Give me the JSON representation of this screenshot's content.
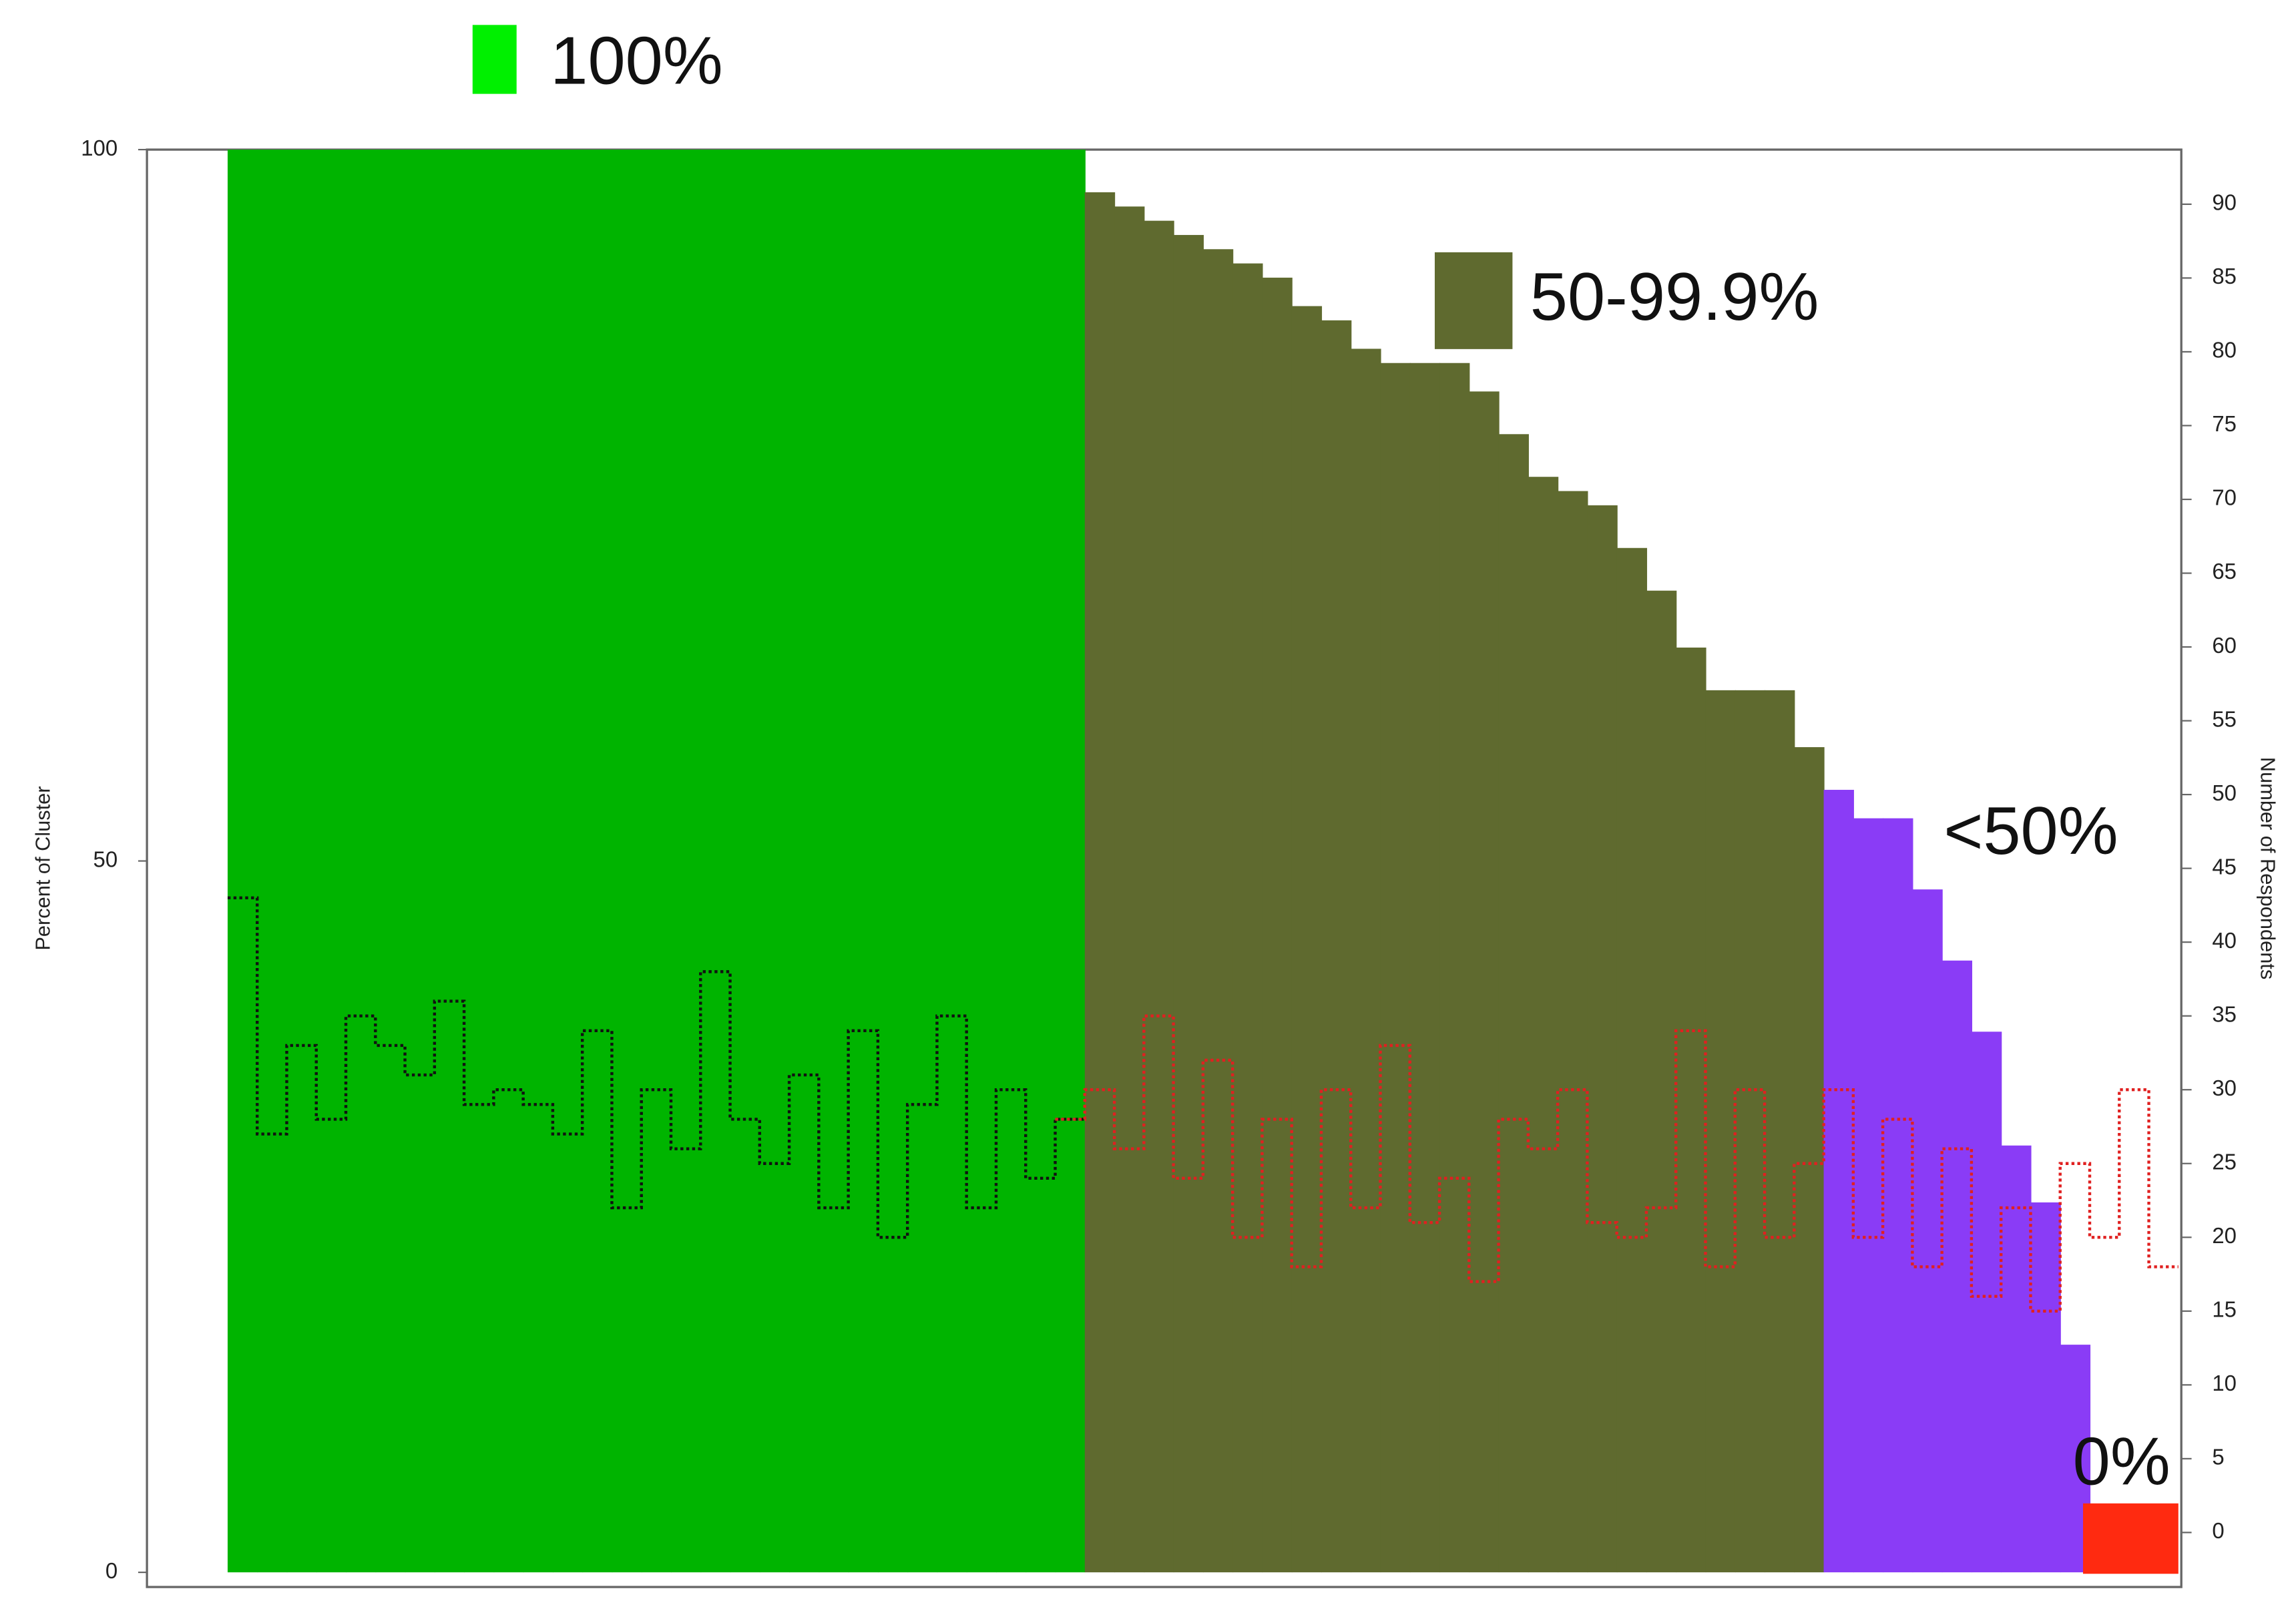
{
  "chart_data": {
    "type": "bar",
    "ylabel": "Percent of Cluster",
    "y2label": "Number of Respondents",
    "categories": [
      null,
      null,
      null,
      null,
      null,
      null,
      null,
      null,
      null,
      null,
      null,
      null,
      null,
      null,
      null,
      null,
      null,
      null,
      null,
      null,
      null,
      null,
      null,
      null,
      null,
      null,
      null,
      null,
      null,
      null,
      null,
      null,
      null,
      null,
      null,
      null,
      null,
      null,
      null,
      null,
      null,
      null,
      null,
      null,
      null,
      null,
      null,
      null,
      null,
      null,
      null,
      null,
      null,
      null,
      null,
      null,
      null,
      null,
      null,
      null,
      null,
      null,
      null,
      null,
      null,
      null
    ],
    "series": [
      {
        "name": "100%",
        "color": "#00b400",
        "values": [
          100,
          100,
          100,
          100,
          100,
          100,
          100,
          100,
          100,
          100,
          100,
          100,
          100,
          100,
          100,
          100,
          100,
          100,
          100,
          100,
          100,
          100,
          100,
          100,
          100,
          100,
          100,
          100,
          100,
          null,
          null,
          null,
          null,
          null,
          null,
          null,
          null,
          null,
          null,
          null,
          null,
          null,
          null,
          null,
          null,
          null,
          null,
          null,
          null,
          null,
          null,
          null,
          null,
          null,
          null,
          null,
          null,
          null,
          null,
          null,
          null,
          null,
          null,
          null,
          null,
          null
        ]
      },
      {
        "name": "50-99.9%",
        "color": "#5f6a2f",
        "values": [
          null,
          null,
          null,
          null,
          null,
          null,
          null,
          null,
          null,
          null,
          null,
          null,
          null,
          null,
          null,
          null,
          null,
          null,
          null,
          null,
          null,
          null,
          null,
          null,
          null,
          null,
          null,
          null,
          null,
          97,
          96,
          95,
          94,
          93,
          92,
          91,
          89,
          88,
          86,
          85,
          85,
          85,
          83,
          80,
          77,
          76,
          75,
          72,
          69,
          65,
          62,
          62,
          62,
          58,
          null,
          null,
          null,
          null,
          null,
          null,
          null,
          null,
          null,
          null,
          null,
          null
        ]
      },
      {
        "name": "<50%",
        "color": "#8a3cf6",
        "values": [
          null,
          null,
          null,
          null,
          null,
          null,
          null,
          null,
          null,
          null,
          null,
          null,
          null,
          null,
          null,
          null,
          null,
          null,
          null,
          null,
          null,
          null,
          null,
          null,
          null,
          null,
          null,
          null,
          null,
          null,
          null,
          null,
          null,
          null,
          null,
          null,
          null,
          null,
          null,
          null,
          null,
          null,
          null,
          null,
          null,
          null,
          null,
          null,
          null,
          null,
          null,
          null,
          null,
          null,
          55,
          53,
          53,
          48,
          43,
          38,
          30,
          26,
          16,
          null,
          null,
          null
        ]
      },
      {
        "name": "0%",
        "color": "#ff2a10",
        "values": [
          null,
          null,
          null,
          null,
          null,
          null,
          null,
          null,
          null,
          null,
          null,
          null,
          null,
          null,
          null,
          null,
          null,
          null,
          null,
          null,
          null,
          null,
          null,
          null,
          null,
          null,
          null,
          null,
          null,
          null,
          null,
          null,
          null,
          null,
          null,
          null,
          null,
          null,
          null,
          null,
          null,
          null,
          null,
          null,
          null,
          null,
          null,
          null,
          null,
          null,
          null,
          null,
          null,
          null,
          null,
          null,
          null,
          null,
          null,
          null,
          null,
          null,
          null,
          0,
          0,
          0
        ]
      }
    ],
    "lines": [
      {
        "color": "#111111",
        "values": [
          43,
          27,
          33,
          28,
          35,
          33,
          31,
          36,
          29,
          30,
          29,
          27,
          34,
          22,
          30,
          26,
          38,
          28,
          25,
          31,
          22,
          34,
          20,
          29,
          35,
          22,
          30,
          24,
          28,
          null,
          null,
          null,
          null,
          null,
          null,
          null,
          null,
          null,
          null,
          null,
          null,
          null,
          null,
          null,
          null,
          null,
          null,
          null,
          null,
          null,
          null,
          null,
          null,
          null,
          null,
          null,
          null,
          null,
          null,
          null,
          null,
          null,
          null,
          null,
          null,
          null
        ]
      },
      {
        "color": "#e02020",
        "values": [
          null,
          null,
          null,
          null,
          null,
          null,
          null,
          null,
          null,
          null,
          null,
          null,
          null,
          null,
          null,
          null,
          null,
          null,
          null,
          null,
          null,
          null,
          null,
          null,
          null,
          null,
          null,
          null,
          28,
          30,
          26,
          35,
          24,
          32,
          20,
          28,
          18,
          30,
          22,
          33,
          21,
          24,
          17,
          28,
          26,
          30,
          21,
          20,
          22,
          34,
          18,
          30,
          20,
          25,
          30,
          20,
          28,
          18,
          26,
          16,
          22,
          15,
          25,
          20,
          30,
          18
        ]
      }
    ],
    "ylim": [
      0,
      100
    ],
    "yticks": [
      0,
      50,
      100
    ],
    "y2lim": [
      -2.7,
      93.7
    ],
    "y2ticks": [
      0,
      5,
      10,
      15,
      20,
      25,
      30,
      35,
      40,
      45,
      50,
      55,
      60,
      65,
      70,
      75,
      80,
      85,
      90
    ]
  }
}
